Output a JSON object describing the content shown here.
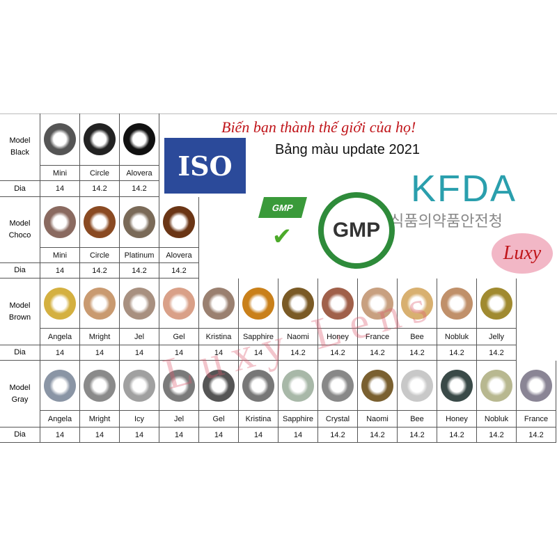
{
  "header": {
    "slogan": "Biến bạn thành thế giới của họ!",
    "subtitle": "Bảng màu update 2021",
    "iso": "ISO",
    "kfda": "KFDA",
    "kfda_korean": "식품의약품안전청",
    "gmp": "GMP",
    "gmp_check": "✔",
    "brand": "Luxy",
    "watermark": "Luxy Lens"
  },
  "dia_label": "Dia",
  "groups": [
    {
      "label": "Model\nBlack",
      "colors": [
        "#555",
        "#222",
        "#111"
      ],
      "names": [
        "Mini",
        "Circle",
        "Alovera"
      ],
      "dia": [
        "14",
        "14.2",
        "14.2"
      ]
    },
    {
      "label": "Model\nChoco",
      "colors": [
        "#8a6a60",
        "#8a4a22",
        "#7a6a58",
        "#6a3515"
      ],
      "names": [
        "Mini",
        "Circle",
        "Platinum",
        "Alovera"
      ],
      "dia": [
        "14",
        "14.2",
        "14.2",
        "14.2"
      ]
    },
    {
      "label": "Model\nBrown",
      "colors": [
        "#d4b040",
        "#c99a70",
        "#a89080",
        "#d9a088",
        "#9a8070",
        "#c9801a",
        "#7a5a25",
        "#a0604a",
        "#c8a080",
        "#d8b070",
        "#c0906a",
        "#a08a30"
      ],
      "names": [
        "Angela",
        "Mright",
        "Jel",
        "Gel",
        "Kristina",
        "Sapphire",
        "Naomi",
        "Honey",
        "France",
        "Bee",
        "Nobluk",
        "Jelly"
      ],
      "dia": [
        "14",
        "14",
        "14",
        "14",
        "14",
        "14",
        "14.2",
        "14.2",
        "14.2",
        "14.2",
        "14.2",
        "14.2"
      ]
    },
    {
      "label": "Model\nGray",
      "colors": [
        "#8a95a5",
        "#8a8a8a",
        "#a0a0a0",
        "#7a7a7a",
        "#555",
        "#777",
        "#a8b8a8",
        "#888",
        "#7a6030",
        "#c8c8c8",
        "#3a4a48",
        "#b8b890",
        "#8a8595"
      ],
      "names": [
        "Angela",
        "Mright",
        "Icy",
        "Jel",
        "Gel",
        "Kristina",
        "Sapphire",
        "Crystal",
        "Naomi",
        "Bee",
        "Honey",
        "Nobluk",
        "France"
      ],
      "dia": [
        "14",
        "14",
        "14",
        "14",
        "14",
        "14",
        "14",
        "14.2",
        "14.2",
        "14.2",
        "14.2",
        "14.2",
        "14.2"
      ]
    }
  ]
}
